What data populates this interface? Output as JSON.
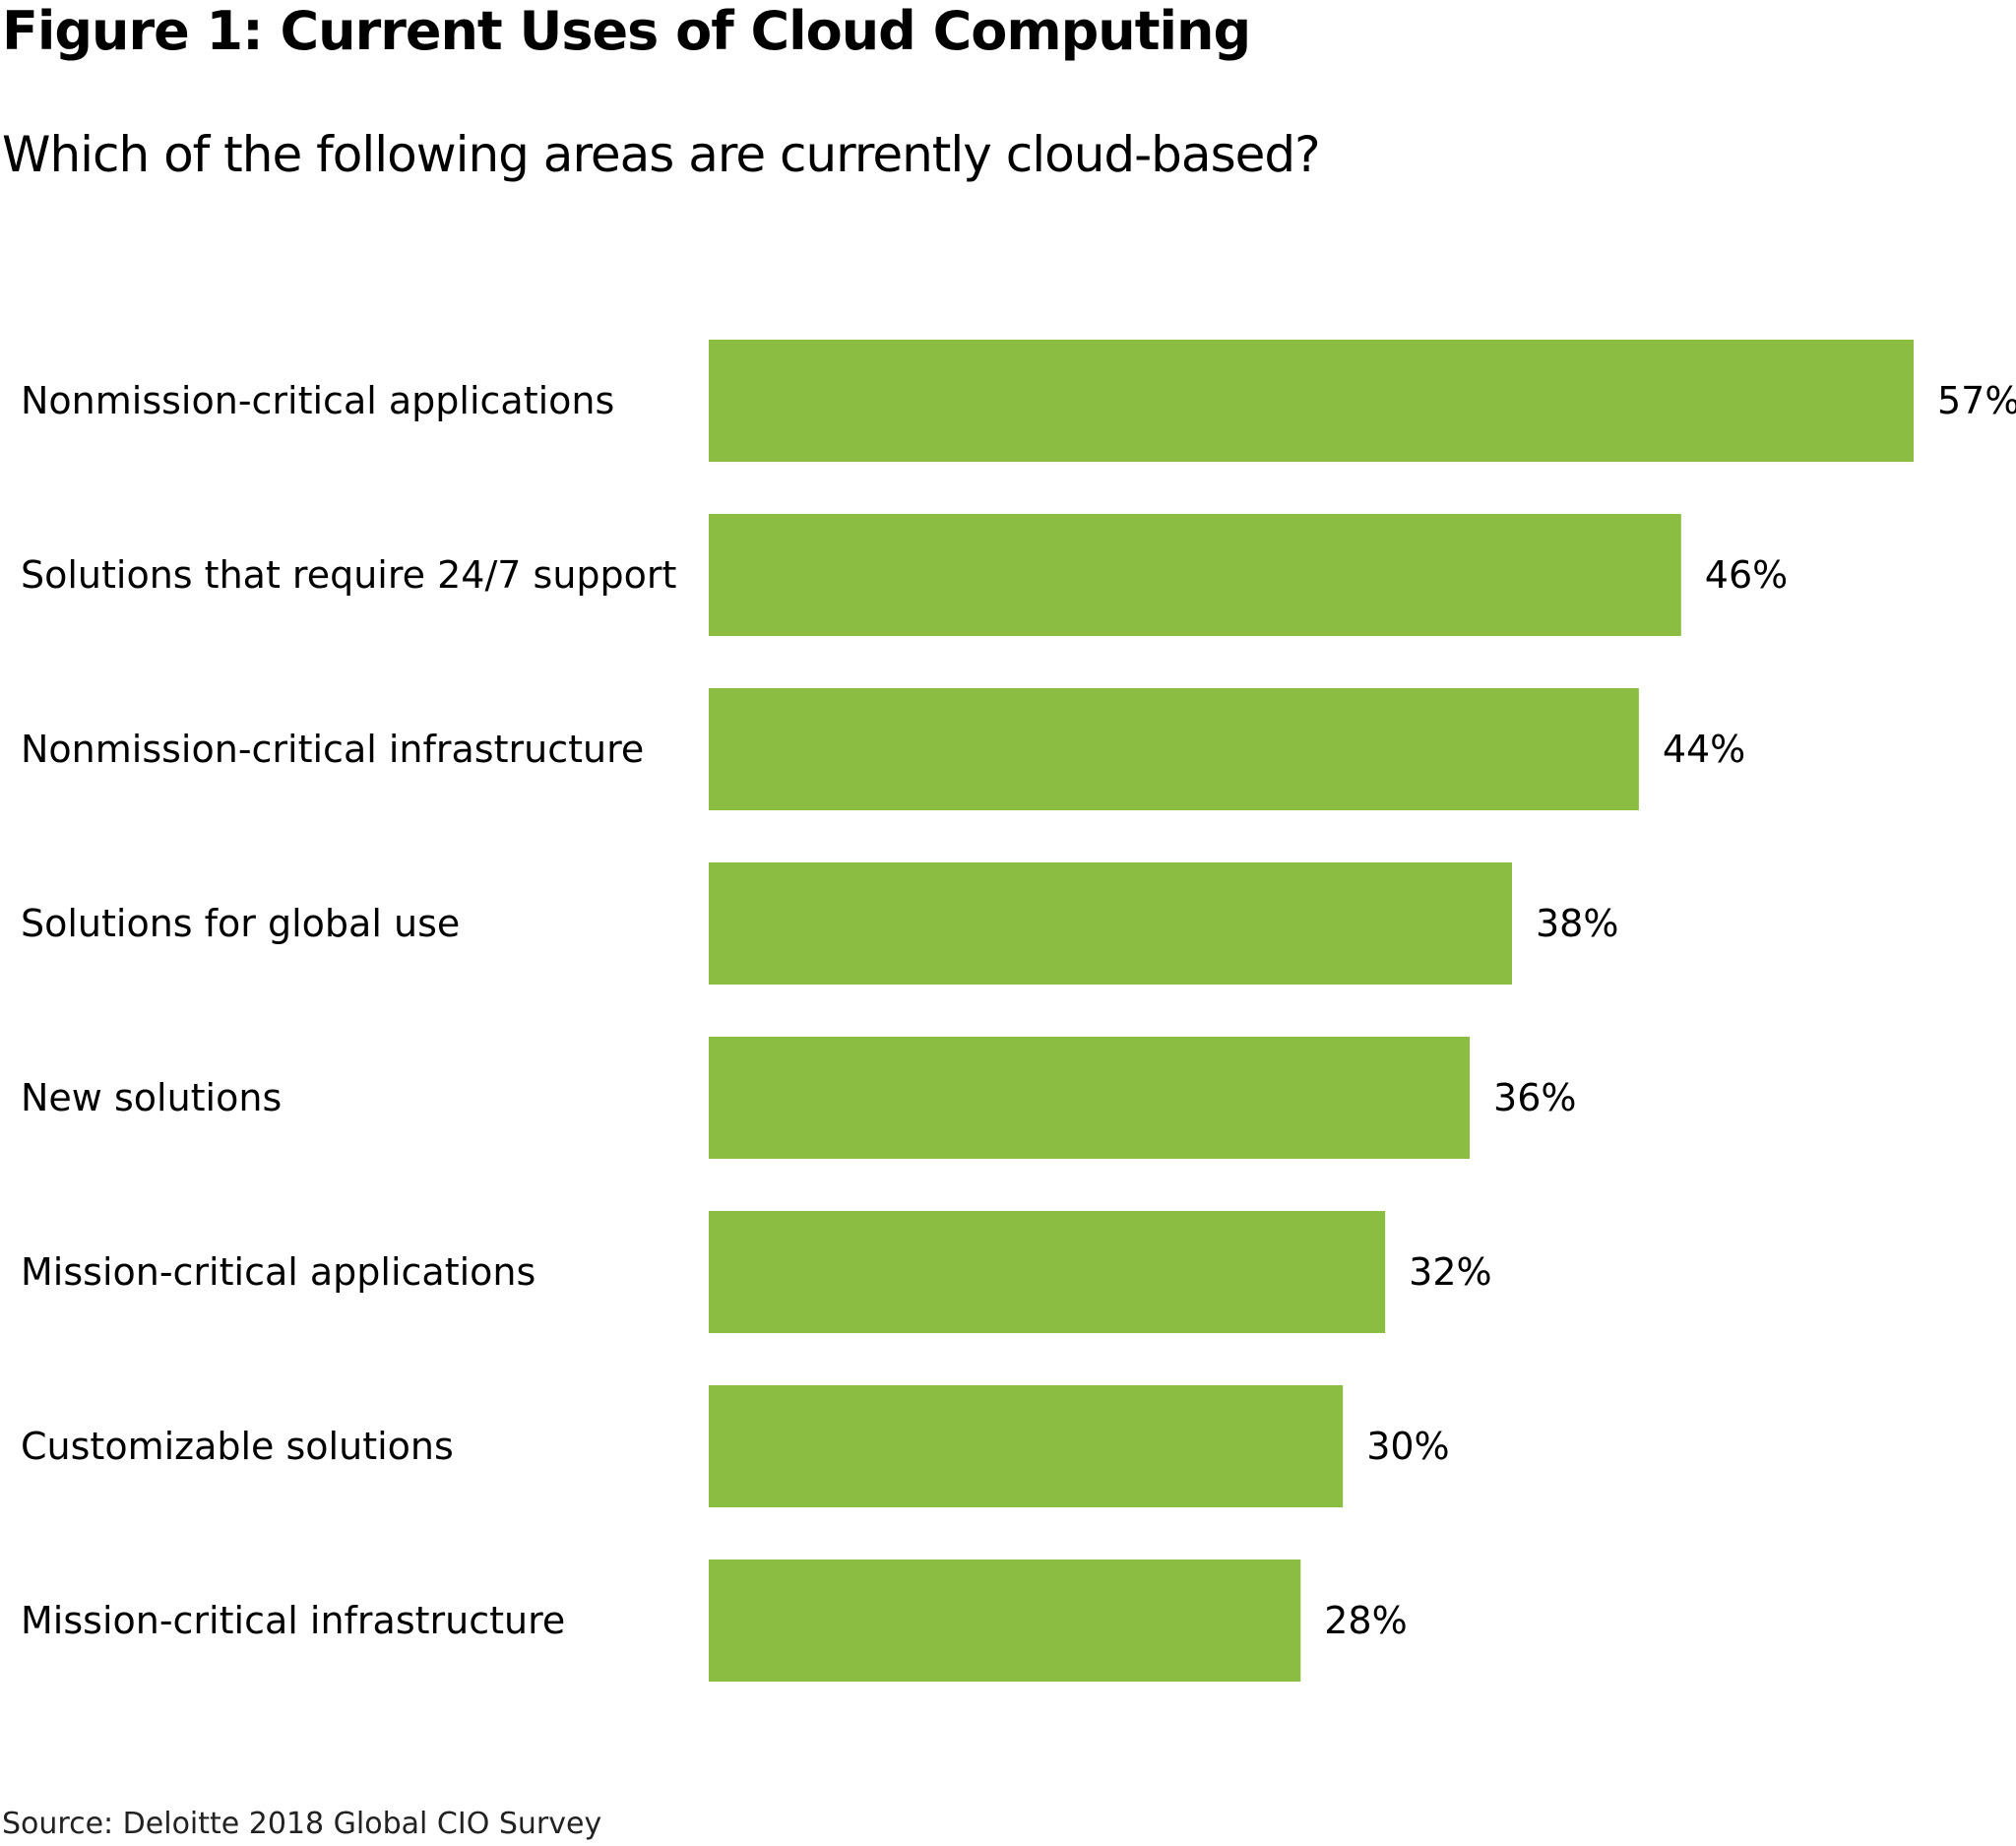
{
  "chart_data": {
    "type": "bar",
    "orientation": "horizontal",
    "title": "Figure 1: Current Uses of Cloud Computing",
    "subtitle": "Which of the following areas are currently cloud-based?",
    "categories": [
      "Nonmission-critical applications",
      "Solutions that require 24/7 support",
      "Nonmission-critical infrastructure",
      "Solutions for global use",
      "New solutions",
      "Mission-critical applications",
      "Customizable solutions",
      "Mission-critical infrastructure"
    ],
    "values": [
      57,
      46,
      44,
      38,
      36,
      32,
      30,
      28
    ],
    "value_labels": [
      "57%",
      "46%",
      "44%",
      "38%",
      "36%",
      "32%",
      "30%",
      "28%"
    ],
    "unit": "%",
    "xlim": [
      0,
      57
    ],
    "grid": false,
    "bar_color": "#8abd41",
    "source": "Source: Deloitte 2018 Global CIO Survey"
  }
}
